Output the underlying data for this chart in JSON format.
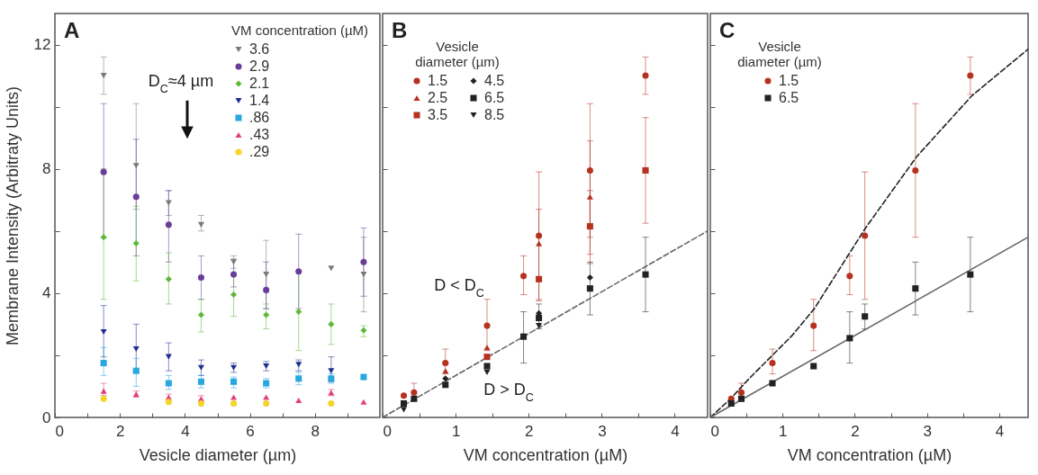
{
  "chart_data": [
    {
      "type": "scatter",
      "xlabel": "Vesicle diameter (µm)",
      "ylabel": "Membrane Intensity (Arbitraty Units)",
      "legend_title": "VM concentration (µM)",
      "legend": "top right",
      "x": [
        1.5,
        2.5,
        3.5,
        4.5,
        5.5,
        6.5,
        7.5,
        8.5,
        9.5
      ],
      "xlim": [
        0,
        10
      ],
      "ylim": [
        0,
        13
      ],
      "xticks": [
        0,
        {
          "value": 1,
          "label": null
        },
        2,
        {
          "value": 3,
          "label": null
        },
        4,
        {
          "value": 5,
          "label": null
        },
        6,
        {
          "value": 7,
          "label": null
        },
        8,
        {
          "value": 9,
          "label": null
        }
      ],
      "yticks": [
        0,
        {
          "value": 2,
          "label": null
        },
        4,
        {
          "value": 6,
          "label": null
        },
        8,
        {
          "value": 10,
          "label": null
        },
        12
      ],
      "annotations": [
        "A",
        "D$_{C}$≈4 µm"
      ],
      "series": [
        {
          "name": "3.6",
          "color": "#7a7a7a",
          "marker": "triangle-down",
          "values": [
            11.0,
            8.1,
            6.9,
            6.2,
            5.0,
            4.6,
            null,
            4.8,
            4.6
          ],
          "errors": [
            [
              10.4,
              11.6
            ],
            [
              6.7,
              10.1
            ],
            [
              6.5,
              7.3
            ],
            [
              6.0,
              6.5
            ],
            [
              4.8,
              5.2
            ],
            [
              3.5,
              5.7
            ],
            null,
            null,
            [
              3.4,
              5.8
            ]
          ]
        },
        {
          "name": "2.9",
          "color": "#6a3d9a",
          "marker": "circle",
          "values": [
            7.9,
            7.1,
            6.2,
            4.5,
            4.6,
            4.1,
            4.7,
            null,
            5.0
          ],
          "errors": [
            [
              5.8,
              10.1
            ],
            [
              5.2,
              8.95
            ],
            [
              5.0,
              7.3
            ],
            [
              3.8,
              5.2
            ],
            [
              4.2,
              5.1
            ],
            [
              3.5,
              5.0
            ],
            [
              3.5,
              5.9
            ],
            null,
            [
              3.9,
              6.1
            ]
          ]
        },
        {
          "name": "2.1",
          "color": "#5cb83a",
          "marker": "diamond",
          "values": [
            5.8,
            5.6,
            4.45,
            3.3,
            3.95,
            3.3,
            3.4,
            3.0,
            2.8
          ],
          "errors": [
            [
              3.8,
              8.0
            ],
            [
              4.4,
              6.8
            ],
            [
              3.65,
              5.3
            ],
            [
              2.75,
              3.8
            ],
            [
              3.25,
              4.6
            ],
            [
              2.85,
              3.65
            ],
            [
              2.15,
              4.7
            ],
            [
              2.35,
              3.65
            ],
            [
              2.6,
              2.95
            ]
          ]
        },
        {
          "name": "1.4",
          "color": "#1f2f8f",
          "marker": "triangle-down",
          "values": [
            2.75,
            2.2,
            1.95,
            1.6,
            1.6,
            1.65,
            1.7,
            1.5,
            null
          ],
          "errors": [
            [
              1.95,
              3.6
            ],
            [
              1.45,
              3.0
            ],
            [
              1.5,
              2.4
            ],
            [
              1.35,
              1.85
            ],
            [
              1.45,
              1.75
            ],
            [
              1.5,
              1.8
            ],
            [
              1.5,
              1.85
            ],
            [
              1.15,
              1.95
            ],
            null
          ]
        },
        {
          "name": ".86",
          "color": "#29a8e0",
          "marker": "square",
          "values": [
            1.75,
            1.5,
            1.1,
            1.15,
            1.15,
            1.1,
            1.25,
            1.25,
            1.3
          ],
          "errors": [
            [
              1.35,
              2.25
            ],
            [
              1.0,
              1.9
            ],
            [
              0.9,
              1.35
            ],
            [
              0.95,
              1.35
            ],
            [
              0.95,
              1.3
            ],
            [
              0.95,
              1.25
            ],
            [
              1.05,
              1.45
            ],
            [
              1.1,
              1.4
            ],
            null
          ]
        },
        {
          "name": ".43",
          "color": "#e0407a",
          "marker": "triangle",
          "values": [
            0.85,
            0.75,
            0.65,
            0.6,
            0.65,
            0.65,
            0.55,
            0.8,
            0.5
          ],
          "errors": [
            [
              0.7,
              1.1
            ],
            [
              0.65,
              0.85
            ],
            [
              0.55,
              0.75
            ],
            [
              0.5,
              0.7
            ],
            null,
            null,
            null,
            [
              0.7,
              0.9
            ],
            null
          ]
        },
        {
          "name": ".29",
          "color": "#f5d327",
          "marker": "circle",
          "values": [
            0.6,
            null,
            0.5,
            0.45,
            0.45,
            0.45,
            null,
            0.45,
            null
          ]
        }
      ]
    },
    {
      "type": "scatter",
      "xlabel": "VM concentration (µM)",
      "legend_title": "Vesicle diameter (µm)",
      "legend": "top left",
      "tick_labels": "x",
      "x": [
        0.29,
        0.43,
        0.86,
        1.43,
        1.93,
        2.14,
        2.84,
        3.6
      ],
      "xlim": [
        0,
        4.45
      ],
      "ylim": [
        0,
        13
      ],
      "xticks": [
        0,
        {
          "value": 0.5,
          "label": null
        },
        1,
        {
          "value": 1.5,
          "label": null
        },
        2,
        {
          "value": 2.5,
          "label": null
        },
        3,
        {
          "value": 3.5,
          "label": null
        },
        4
      ],
      "yticks": [
        0,
        {
          "value": 2,
          "label": null
        },
        4,
        {
          "value": 6,
          "label": null
        },
        8,
        {
          "value": 10,
          "label": null
        },
        12
      ],
      "annotations": [
        "B",
        "D < D$_{C}$",
        "D > D$_{C}$"
      ],
      "series": [
        {
          "name": "1.5",
          "color": "#b5321f",
          "marker": "circle",
          "values": [
            0.7,
            0.8,
            1.75,
            2.95,
            4.55,
            5.85,
            7.95,
            11.0
          ],
          "errors": [
            null,
            [
              0.55,
              1.1
            ],
            [
              1.4,
              2.2
            ],
            [
              2.15,
              3.8
            ],
            [
              3.95,
              5.2
            ],
            [
              3.8,
              7.9
            ],
            [
              5.8,
              10.1
            ],
            [
              10.4,
              11.6
            ]
          ]
        },
        {
          "name": "2.5",
          "color": "#b5321f",
          "marker": "triangle",
          "values": [
            null,
            null,
            1.5,
            2.25,
            null,
            5.6,
            7.1,
            null
          ],
          "errors": [
            null,
            null,
            null,
            null,
            null,
            null,
            [
              5.25,
              8.9
            ],
            null
          ]
        },
        {
          "name": "3.5",
          "color": "#b5321f",
          "marker": "square",
          "values": [
            null,
            null,
            null,
            1.95,
            null,
            4.45,
            6.15,
            7.95
          ],
          "errors": [
            null,
            null,
            null,
            null,
            null,
            [
              3.75,
              6.7
            ],
            [
              4.95,
              7.3
            ],
            [
              6.25,
              9.65
            ]
          ]
        },
        {
          "name": "4.5",
          "color": "#222222",
          "marker": "diamond",
          "values": [
            null,
            null,
            1.25,
            null,
            null,
            3.35,
            4.5,
            null
          ]
        },
        {
          "name": "6.5",
          "color": "#222222",
          "marker": "square",
          "values": [
            0.45,
            0.6,
            1.05,
            1.65,
            2.6,
            3.2,
            4.15,
            4.6
          ],
          "errors": [
            null,
            null,
            null,
            null,
            [
              1.75,
              3.4
            ],
            [
              2.85,
              3.65
            ],
            [
              3.3,
              5.0
            ],
            [
              3.4,
              5.8
            ]
          ]
        },
        {
          "name": "8.5",
          "color": "#222222",
          "marker": "triangle-down",
          "values": [
            0.25,
            null,
            null,
            1.45,
            null,
            2.95,
            null,
            null
          ]
        },
        {
          "type": "line",
          "color": "#666666",
          "line_style": "dashed",
          "x": [
            0,
            4.45
          ],
          "values": [
            0,
            6.0
          ]
        }
      ]
    },
    {
      "type": "scatter",
      "xlabel": "VM concentration (µM)",
      "legend_title": "Vesicle diameter (µm)",
      "legend": "top left",
      "tick_labels": "x",
      "x": [
        0.29,
        0.43,
        0.86,
        1.43,
        1.93,
        2.14,
        2.84,
        3.6
      ],
      "xlim": [
        0,
        4.4
      ],
      "ylim": [
        0,
        13
      ],
      "xticks": [
        0,
        {
          "value": 0.5,
          "label": null
        },
        1,
        {
          "value": 1.5,
          "label": null
        },
        2,
        {
          "value": 2.5,
          "label": null
        },
        3,
        {
          "value": 3.5,
          "label": null
        },
        4
      ],
      "yticks": [
        0,
        {
          "value": 2,
          "label": null
        },
        4,
        {
          "value": 6,
          "label": null
        },
        8,
        {
          "value": 10,
          "label": null
        },
        12
      ],
      "annotations": [
        "C"
      ],
      "series": [
        {
          "name": "1.5",
          "color": "#b5321f",
          "marker": "circle",
          "values": [
            0.6,
            0.8,
            1.75,
            2.95,
            4.55,
            5.85,
            7.95,
            11.0
          ],
          "errors": [
            null,
            [
              0.55,
              1.1
            ],
            [
              1.4,
              2.2
            ],
            [
              2.15,
              3.8
            ],
            [
              3.95,
              5.2
            ],
            [
              3.8,
              7.9
            ],
            [
              5.8,
              10.1
            ],
            [
              10.4,
              11.6
            ]
          ]
        },
        {
          "name": "6.5",
          "color": "#222222",
          "marker": "square",
          "values": [
            0.45,
            0.6,
            1.1,
            1.65,
            2.55,
            3.25,
            4.15,
            4.6
          ],
          "errors": [
            null,
            null,
            null,
            null,
            [
              1.75,
              3.4
            ],
            [
              2.85,
              3.65
            ],
            [
              3.3,
              5.0
            ],
            [
              3.4,
              5.8
            ]
          ]
        },
        {
          "type": "line",
          "color": "#222222",
          "line_style": "dashed",
          "x": [
            0,
            0.28,
            0.55,
            1.13,
            1.44,
            2.15,
            2.86,
            3.62,
            4.4
          ],
          "values": [
            0,
            0.6,
            1.28,
            2.63,
            3.5,
            6.1,
            8.4,
            10.35,
            11.85
          ]
        },
        {
          "type": "line",
          "color": "#666666",
          "line_style": "solid",
          "x": [
            0,
            4.4
          ],
          "values": [
            0,
            5.8
          ]
        }
      ]
    }
  ]
}
